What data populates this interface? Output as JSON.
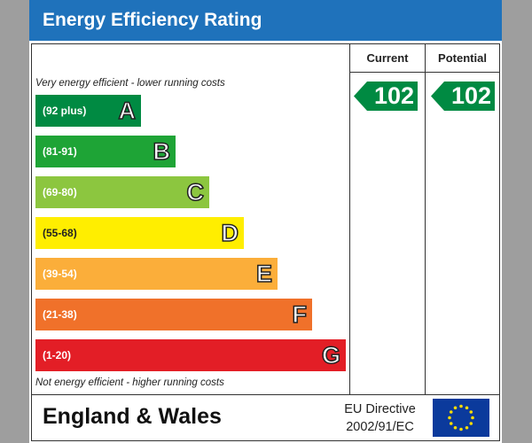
{
  "title": "Energy Efficiency Rating",
  "columns": {
    "current": "Current",
    "potential": "Potential"
  },
  "top_caption": "Very energy efficient - lower running costs",
  "bottom_caption": "Not energy efficient - higher running costs",
  "bands": [
    {
      "range": "(92 plus)",
      "letter": "A",
      "color": "#008a42"
    },
    {
      "range": "(81-91)",
      "letter": "B",
      "color": "#1ea436"
    },
    {
      "range": "(69-80)",
      "letter": "C",
      "color": "#8cc63f"
    },
    {
      "range": "(55-68)",
      "letter": "D",
      "color": "#ffee00"
    },
    {
      "range": "(39-54)",
      "letter": "E",
      "color": "#fbae3a"
    },
    {
      "range": "(21-38)",
      "letter": "F",
      "color": "#f0712a"
    },
    {
      "range": "(1-20)",
      "letter": "G",
      "color": "#e31e26"
    }
  ],
  "ratings": {
    "current": {
      "value": "102",
      "band": "A"
    },
    "potential": {
      "value": "102",
      "band": "A"
    }
  },
  "footer": {
    "region": "England & Wales",
    "directive_line1": "EU Directive",
    "directive_line2": "2002/91/EC",
    "flag_icon": "eu-flag-icon"
  }
}
